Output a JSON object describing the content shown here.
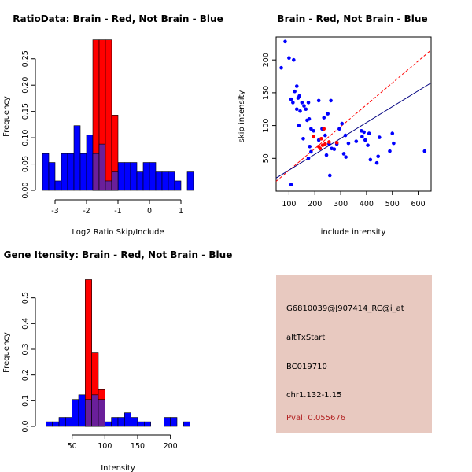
{
  "chart_data": [
    {
      "type": "bar",
      "subtype": "histogram",
      "title": "RatioData: Brain - Red, Not Brain - Blue",
      "xlabel": "Log2 Ratio Skip/Include",
      "ylabel": "Frequency",
      "xlim": [
        -3.5,
        1.5
      ],
      "ylim": [
        0,
        0.29
      ],
      "xticks": [
        -3,
        -2,
        -1,
        0,
        1
      ],
      "yticks": [
        0.0,
        0.05,
        0.1,
        0.15,
        0.2,
        0.25
      ],
      "ytick_labels": [
        "0.00",
        "0.05",
        "0.10",
        "0.15",
        "0.20",
        "0.25"
      ],
      "colors": {
        "brain": "#ff0000",
        "not_brain": "#0000ff",
        "overlap": "#6a1f9a"
      },
      "series": [
        {
          "name": "Not Brain",
          "bin_width": 0.2,
          "bins_start": [
            -3.4,
            -3.2,
            -3.0,
            -2.8,
            -2.6,
            -2.4,
            -2.2,
            -2.0,
            -1.8,
            -1.6,
            -1.4,
            -1.2,
            -1.0,
            -0.8,
            -0.6,
            -0.4,
            -0.2,
            0.0,
            0.2,
            0.4,
            0.6,
            0.8,
            1.0,
            1.2
          ],
          "values": [
            0.07,
            0.053,
            0.018,
            0.07,
            0.07,
            0.123,
            0.07,
            0.105,
            0.07,
            0.088,
            0.018,
            0.035,
            0.053,
            0.053,
            0.053,
            0.035,
            0.053,
            0.053,
            0.035,
            0.035,
            0.035,
            0.018,
            0.0,
            0.035
          ]
        },
        {
          "name": "Brain",
          "bin_width": 0.2,
          "bins_start": [
            -2.0,
            -1.8,
            -1.6,
            -1.4,
            -1.2
          ],
          "values": [
            0.0,
            0.286,
            0.286,
            0.286,
            0.143
          ]
        }
      ]
    },
    {
      "type": "scatter",
      "title": "Brain - Red, Not Brain - Blue",
      "xlabel": "include intensity",
      "ylabel": "skip intensity",
      "xlim": [
        50,
        650
      ],
      "ylim": [
        0,
        235
      ],
      "xticks": [
        100,
        200,
        300,
        400,
        500,
        600
      ],
      "yticks": [
        50,
        100,
        150,
        200
      ],
      "series": [
        {
          "name": "Not Brain",
          "color": "#0000ff",
          "points": [
            [
              85,
              228
            ],
            [
              70,
              188
            ],
            [
              100,
              203
            ],
            [
              118,
              200
            ],
            [
              108,
              140
            ],
            [
              115,
              135
            ],
            [
              122,
              152
            ],
            [
              130,
              160
            ],
            [
              135,
              142
            ],
            [
              130,
              125
            ],
            [
              140,
              145
            ],
            [
              143,
              122
            ],
            [
              138,
              100
            ],
            [
              150,
              135
            ],
            [
              155,
              80
            ],
            [
              158,
              130
            ],
            [
              165,
              125
            ],
            [
              170,
              108
            ],
            [
              175,
              135
            ],
            [
              178,
              110
            ],
            [
              185,
              95
            ],
            [
              195,
              92
            ],
            [
              180,
              68
            ],
            [
              185,
              60
            ],
            [
              215,
              138
            ],
            [
              235,
              112
            ],
            [
              228,
              95
            ],
            [
              240,
              85
            ],
            [
              250,
              118
            ],
            [
              262,
              138
            ],
            [
              255,
              72
            ],
            [
              265,
              65
            ],
            [
              245,
              55
            ],
            [
              258,
              24
            ],
            [
              275,
              64
            ],
            [
              285,
              72
            ],
            [
              295,
              95
            ],
            [
              305,
              103
            ],
            [
              312,
              57
            ],
            [
              320,
              52
            ],
            [
              318,
              85
            ],
            [
              330,
              73
            ],
            [
              360,
              76
            ],
            [
              380,
              92
            ],
            [
              383,
              83
            ],
            [
              390,
              90
            ],
            [
              395,
              78
            ],
            [
              405,
              70
            ],
            [
              410,
              88
            ],
            [
              415,
              48
            ],
            [
              440,
              43
            ],
            [
              445,
              53
            ],
            [
              450,
              82
            ],
            [
              490,
              61
            ],
            [
              500,
              88
            ],
            [
              505,
              73
            ],
            [
              625,
              61
            ],
            [
              108,
              10
            ],
            [
              175,
              50
            ],
            [
              215,
              78
            ]
          ]
        },
        {
          "name": "Brain",
          "color": "#ff0000",
          "points": [
            [
              225,
              80
            ],
            [
              235,
              95
            ],
            [
              240,
              72
            ],
            [
              230,
              70
            ],
            [
              255,
              75
            ],
            [
              195,
              83
            ],
            [
              285,
              74
            ],
            [
              215,
              68
            ],
            [
              220,
              65
            ]
          ]
        }
      ],
      "fit_lines": [
        {
          "name": "Brain fit",
          "color": "#ff0000",
          "dashed": true,
          "endpoints": [
            [
              50,
              15
            ],
            [
              650,
              215
            ]
          ]
        },
        {
          "name": "Not Brain fit",
          "color": "#000080",
          "dashed": false,
          "endpoints": [
            [
              50,
              20
            ],
            [
              650,
              165
            ]
          ]
        }
      ]
    },
    {
      "type": "bar",
      "subtype": "histogram",
      "title": "Gene Itensity: Brain - Red, Not Brain - Blue",
      "xlabel": "Intensity",
      "ylabel": "Frequency",
      "xlim": [
        0,
        240
      ],
      "ylim": [
        0,
        0.6
      ],
      "xticks": [
        50,
        100,
        150,
        200
      ],
      "yticks": [
        0.0,
        0.1,
        0.2,
        0.3,
        0.4,
        0.5
      ],
      "ytick_labels": [
        "0.0",
        "0.1",
        "0.2",
        "0.3",
        "0.4",
        "0.5"
      ],
      "series": [
        {
          "name": "Not Brain",
          "bin_width": 10,
          "bins_start": [
            10,
            20,
            30,
            40,
            50,
            60,
            70,
            80,
            90,
            100,
            110,
            120,
            130,
            140,
            150,
            160,
            170,
            180,
            190,
            200,
            210,
            220
          ],
          "values": [
            0.018,
            0.018,
            0.035,
            0.035,
            0.105,
            0.123,
            0.105,
            0.123,
            0.105,
            0.018,
            0.035,
            0.035,
            0.053,
            0.035,
            0.018,
            0.018,
            0.0,
            0.0,
            0.035,
            0.035,
            0.0,
            0.018
          ]
        },
        {
          "name": "Brain",
          "bin_width": 10,
          "bins_start": [
            60,
            70,
            80,
            90
          ],
          "values": [
            0.0,
            0.571,
            0.286,
            0.143
          ]
        }
      ]
    }
  ],
  "info": {
    "probe_id": "G6810039@J907414_RC@i_at",
    "event_type": "altTxStart",
    "accession": "BC019710",
    "location": "chr1.132-1.15",
    "pval": "Pval: 0.055676"
  }
}
